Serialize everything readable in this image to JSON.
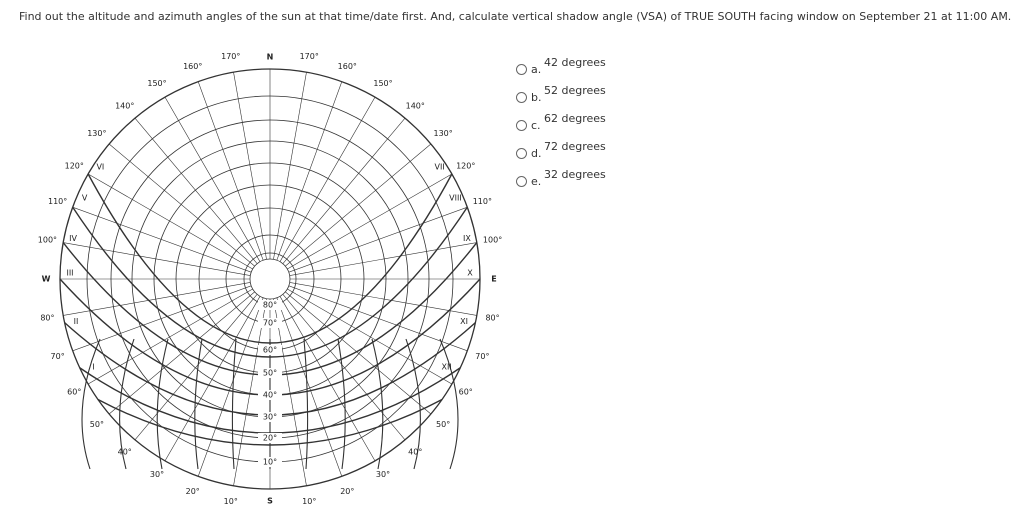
{
  "question": "Find out the altitude and azimuth angles of the sun at that time/date first. And, calculate vertical shadow angle (VSA) of TRUE SOUTH facing window on September 21 at 11:00 AM.",
  "options": [
    {
      "letter": "a.",
      "text": "42 degrees"
    },
    {
      "letter": "b.",
      "text": "52 degrees"
    },
    {
      "letter": "c.",
      "text": "62 degrees"
    },
    {
      "letter": "d.",
      "text": "72 degrees"
    },
    {
      "letter": "e.",
      "text": "32 degrees"
    }
  ],
  "diagram": {
    "directions": {
      "north": "N",
      "south": "S",
      "east": "E",
      "west": "W"
    },
    "azimuth_labels": [
      "10°",
      "20°",
      "30°",
      "40°",
      "50°",
      "60°",
      "70°",
      "80°",
      "100°",
      "110°",
      "120°",
      "130°",
      "140°",
      "150°",
      "160°",
      "170°"
    ],
    "altitude_labels": [
      "10°",
      "20°",
      "30°",
      "40°",
      "50°",
      "60°",
      "70°",
      "80°"
    ],
    "month_labels": [
      "VI",
      "V",
      "IV",
      "III",
      "II",
      "I",
      "XII",
      "XI",
      "X",
      "IX",
      "VIII",
      "VII"
    ]
  }
}
